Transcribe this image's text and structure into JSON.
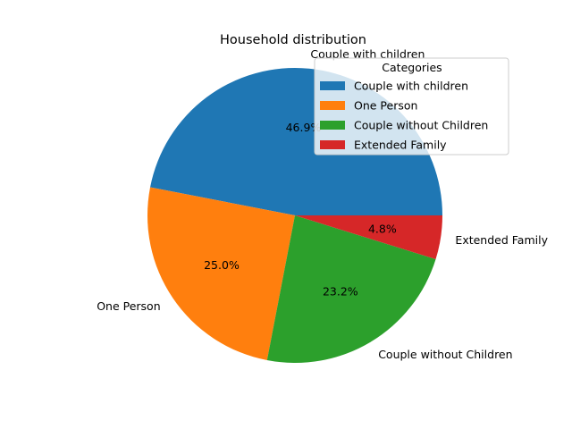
{
  "chart_data": {
    "type": "pie",
    "title": "Household distribution",
    "labels": [
      "Couple with children",
      "One Person",
      "Couple without Children",
      "Extended Family"
    ],
    "values": [
      46.9,
      25.0,
      23.2,
      4.8
    ],
    "pct_labels": [
      "46.9%",
      "25.0%",
      "23.2%",
      "4.8%"
    ],
    "colors": [
      "#1f77b4",
      "#ff7f0e",
      "#2ca02c",
      "#d62728"
    ],
    "start_angle_deg": 0,
    "direction": "counterclockwise",
    "legend": {
      "title": "Categories",
      "placement": "top-right"
    }
  }
}
